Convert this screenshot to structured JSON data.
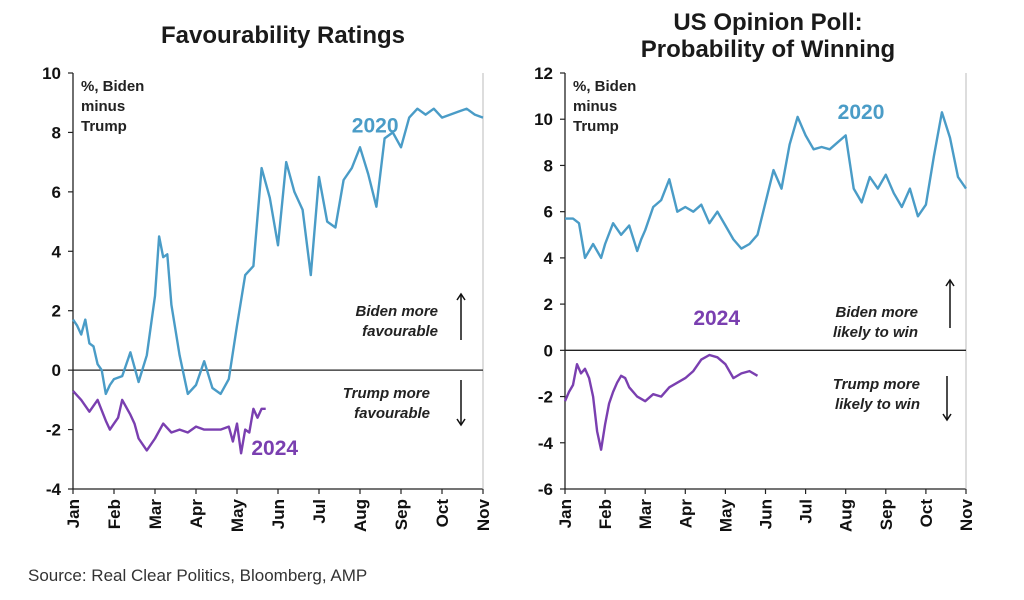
{
  "source": "Source: Real Clear Politics, Bloomberg, AMP",
  "chart_data": [
    {
      "type": "line",
      "title": [
        "Favourability Ratings"
      ],
      "unit_label": [
        "%, Biden",
        "minus",
        "Trump"
      ],
      "ylim": [
        -4,
        10
      ],
      "yticks": [
        -4,
        -2,
        0,
        2,
        4,
        6,
        8,
        10
      ],
      "ytick_labels": [
        "-4",
        "-2",
        "0",
        "2",
        "4",
        "6",
        "8",
        "10"
      ],
      "months": [
        "Jan",
        "Feb",
        "Mar",
        "Apr",
        "May",
        "Jun",
        "Jul",
        "Aug",
        "Sep",
        "Oct",
        "Nov"
      ],
      "annotations": {
        "up": [
          "Biden more",
          "favourable"
        ],
        "down": [
          "Trump more",
          "favourable"
        ]
      },
      "series": [
        {
          "name": "2020",
          "color": "#4a9cc7",
          "x": [
            0,
            0.1,
            0.2,
            0.3,
            0.4,
            0.5,
            0.6,
            0.7,
            0.8,
            0.9,
            1.0,
            1.2,
            1.4,
            1.6,
            1.8,
            2.0,
            2.1,
            2.2,
            2.3,
            2.4,
            2.6,
            2.8,
            3.0,
            3.2,
            3.4,
            3.6,
            3.8,
            4.0,
            4.2,
            4.4,
            4.6,
            4.8,
            5.0,
            5.2,
            5.4,
            5.6,
            5.8,
            6.0,
            6.2,
            6.4,
            6.6,
            6.8,
            7.0,
            7.2,
            7.4,
            7.6,
            7.8,
            8.0,
            8.2,
            8.4,
            8.6,
            8.8,
            9.0,
            9.2,
            9.4,
            9.6,
            9.8,
            10.0
          ],
          "values": [
            1.7,
            1.5,
            1.2,
            1.7,
            0.9,
            0.8,
            0.2,
            0.0,
            -0.8,
            -0.5,
            -0.3,
            -0.2,
            0.6,
            -0.4,
            0.5,
            2.5,
            4.5,
            3.8,
            3.9,
            2.2,
            0.5,
            -0.8,
            -0.5,
            0.3,
            -0.6,
            -0.8,
            -0.3,
            1.5,
            3.2,
            3.5,
            6.8,
            5.8,
            4.2,
            7.0,
            6.0,
            5.4,
            3.2,
            6.5,
            5.0,
            4.8,
            6.4,
            6.8,
            7.5,
            6.6,
            5.5,
            7.8,
            8.0,
            7.5,
            8.5,
            8.8,
            8.6,
            8.8,
            8.5,
            8.6,
            8.7,
            8.8,
            8.6,
            8.5
          ],
          "label_pos": [
            6.8,
            8.0
          ]
        },
        {
          "name": "2024",
          "color": "#7a3fb0",
          "x": [
            0,
            0.2,
            0.4,
            0.6,
            0.8,
            0.9,
            1.0,
            1.1,
            1.2,
            1.4,
            1.5,
            1.6,
            1.8,
            2.0,
            2.2,
            2.4,
            2.6,
            2.8,
            3.0,
            3.2,
            3.4,
            3.6,
            3.8,
            3.9,
            4.0,
            4.1,
            4.2,
            4.3,
            4.4,
            4.5,
            4.6,
            4.7
          ],
          "values": [
            -0.7,
            -1.0,
            -1.4,
            -1.0,
            -1.7,
            -2.0,
            -1.8,
            -1.6,
            -1.0,
            -1.5,
            -1.8,
            -2.3,
            -2.7,
            -2.3,
            -1.8,
            -2.1,
            -2.0,
            -2.1,
            -1.9,
            -2.0,
            -2.0,
            -2.0,
            -1.9,
            -2.4,
            -1.8,
            -2.8,
            -2.0,
            -2.1,
            -1.3,
            -1.6,
            -1.3,
            -1.3
          ],
          "label_pos": [
            4.35,
            -2.85
          ]
        }
      ]
    },
    {
      "type": "line",
      "title": [
        "US Opinion Poll:",
        "Probability of Winning"
      ],
      "unit_label": [
        "%, Biden",
        "minus",
        "Trump"
      ],
      "ylim": [
        -6,
        12
      ],
      "yticks": [
        -6,
        -4,
        -2,
        0,
        2,
        4,
        6,
        8,
        10,
        12
      ],
      "ytick_labels": [
        "-6",
        "-4",
        "-2",
        "0",
        "2",
        "4",
        "6",
        "8",
        "10",
        "12"
      ],
      "months": [
        "Jan",
        "Feb",
        "Mar",
        "Apr",
        "May",
        "Jun",
        "Jul",
        "Aug",
        "Sep",
        "Oct",
        "Nov"
      ],
      "annotations": {
        "up": [
          "Biden more",
          "likely to win"
        ],
        "down": [
          "Trump more",
          "likely to win"
        ]
      },
      "series": [
        {
          "name": "2020",
          "color": "#4a9cc7",
          "x": [
            0,
            0.2,
            0.35,
            0.5,
            0.7,
            0.9,
            1.0,
            1.2,
            1.4,
            1.6,
            1.8,
            1.9,
            2.0,
            2.2,
            2.4,
            2.6,
            2.8,
            3.0,
            3.2,
            3.4,
            3.6,
            3.8,
            4.0,
            4.2,
            4.4,
            4.6,
            4.8,
            5.0,
            5.2,
            5.4,
            5.6,
            5.8,
            6.0,
            6.2,
            6.4,
            6.6,
            6.8,
            7.0,
            7.2,
            7.4,
            7.6,
            7.8,
            8.0,
            8.2,
            8.4,
            8.6,
            8.8,
            9.0,
            9.2,
            9.4,
            9.6,
            9.8,
            10.0
          ],
          "values": [
            5.7,
            5.7,
            5.5,
            4.0,
            4.6,
            4.0,
            4.6,
            5.5,
            5.0,
            5.4,
            4.3,
            4.8,
            5.2,
            6.2,
            6.5,
            7.4,
            6.0,
            6.2,
            6.0,
            6.3,
            5.5,
            6.0,
            5.4,
            4.8,
            4.4,
            4.6,
            5.0,
            6.4,
            7.8,
            7.0,
            8.9,
            10.1,
            9.3,
            8.7,
            8.8,
            8.7,
            9.0,
            9.3,
            7.0,
            6.4,
            7.5,
            7.0,
            7.6,
            6.8,
            6.2,
            7.0,
            5.8,
            6.3,
            8.4,
            10.3,
            9.2,
            7.5,
            7.0
          ],
          "label_pos": [
            6.8,
            10.0
          ]
        },
        {
          "name": "2024",
          "color": "#7a3fb0",
          "x": [
            0,
            0.1,
            0.2,
            0.3,
            0.4,
            0.5,
            0.6,
            0.7,
            0.8,
            0.9,
            1.0,
            1.1,
            1.2,
            1.3,
            1.4,
            1.5,
            1.6,
            1.8,
            2.0,
            2.2,
            2.4,
            2.6,
            2.8,
            3.0,
            3.2,
            3.4,
            3.6,
            3.8,
            4.0,
            4.2,
            4.4,
            4.6,
            4.8
          ],
          "values": [
            -2.2,
            -1.8,
            -1.5,
            -0.6,
            -1.0,
            -0.8,
            -1.2,
            -2.0,
            -3.5,
            -4.3,
            -3.2,
            -2.3,
            -1.8,
            -1.4,
            -1.1,
            -1.2,
            -1.6,
            -2.0,
            -2.2,
            -1.9,
            -2.0,
            -1.6,
            -1.4,
            -1.2,
            -0.9,
            -0.4,
            -0.2,
            -0.3,
            -0.6,
            -1.2,
            -1.0,
            -0.9,
            -1.1
          ],
          "label_pos": [
            3.2,
            1.1
          ]
        }
      ]
    }
  ]
}
